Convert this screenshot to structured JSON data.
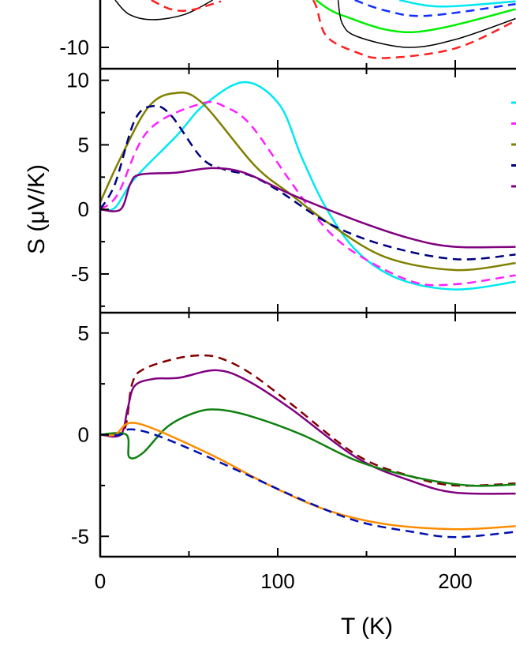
{
  "chart_data": {
    "type": "line",
    "xlabel": "T (K)",
    "ylabel": "S (μV/K)",
    "xlim": [
      0,
      234
    ],
    "xticks": [
      0,
      100,
      200
    ],
    "xtick_labels": [
      "0",
      "100",
      "200"
    ],
    "x_minor_ticks": [
      50,
      150
    ],
    "grid": false,
    "panels": [
      {
        "ylim": [
          -12,
          0
        ],
        "yticks": [
          -10
        ],
        "ytick_labels": [
          "-10"
        ],
        "y_minor_ticks": [],
        "series": [
          {
            "color": "#000000",
            "dash": false,
            "width": 1.5,
            "x": [
              8.4,
              16.3,
              29.6,
              47.7,
              63.4
            ],
            "y": [
              -5.56,
              -6.9,
              -7.4,
              -6.9,
              -5.56
            ]
          },
          {
            "color": "#ff2020",
            "dash": true,
            "width": 2.5,
            "x": [
              28.8,
              39.8,
              50.8,
              68
            ],
            "y": [
              -5.56,
              -6.42,
              -6.5,
              -5.68
            ]
          },
          {
            "color": "#00ee00",
            "dash": false,
            "width": 2.5,
            "x": [
              121.4,
              137,
              176,
              234
            ],
            "y": [
              -5.56,
              -7.04,
              -8.57,
              -6.42
            ]
          },
          {
            "color": "#1030ff",
            "dash": true,
            "width": 2.5,
            "x": [
              143.4,
              160.7,
              184,
              234
            ],
            "y": [
              -5.56,
              -6.55,
              -7.04,
              -5.93
            ]
          },
          {
            "color": "#00e8f0",
            "dash": false,
            "width": 2.5,
            "x": [
              168.5,
              192,
              234
            ],
            "y": [
              -5.56,
              -6.17,
              -5.68
            ]
          },
          {
            "color": "#000000",
            "dash": false,
            "width": 1.5,
            "x": [
              134,
              136.4,
              145,
              173,
              200,
              234
            ],
            "y": [
              -5.56,
              -7.78,
              -9.0,
              -10,
              -9.26,
              -7.3
            ]
          },
          {
            "color": "#ff2020",
            "dash": true,
            "width": 2.5,
            "x": [
              120,
              122,
              127.7,
              145,
              160.7,
              200,
              234
            ],
            "y": [
              -5.56,
              -6.3,
              -9.0,
              -10.5,
              -11.0,
              -10.1,
              -7.5
            ]
          }
        ]
      },
      {
        "ylim": [
          -8,
          10.9
        ],
        "yticks": [
          10,
          5,
          0,
          -5
        ],
        "ytick_labels": [
          "10",
          "5",
          "0",
          "-5"
        ],
        "y_minor_ticks": [
          7.5,
          2.5,
          -2.5,
          -7.5
        ],
        "legend": "right",
        "series": [
          {
            "color": "#00e8f0",
            "dash": false,
            "width": 2.5,
            "x": [
              0,
              8.4,
              19.4,
              43,
              58.6,
              81.4,
              101,
              113.6,
              127.7,
              145,
              168.5,
              200,
              234
            ],
            "y": [
              0,
              0.14,
              2.4,
              5.7,
              8.1,
              9.86,
              8.1,
              4.0,
              0,
              -3.3,
              -5.4,
              -6.2,
              -5.6
            ]
          },
          {
            "color": "#ff20ff",
            "dash": true,
            "width": 2.5,
            "x": [
              0,
              10,
              27,
              57,
              71,
              85,
              107,
              126,
              145,
              176,
              200,
              234
            ],
            "y": [
              0,
              1.2,
              6.1,
              8.2,
              7.9,
              6.5,
              2.2,
              -1.3,
              -3.5,
              -5.6,
              -5.8,
              -5.1
            ]
          },
          {
            "color": "#808000",
            "dash": false,
            "width": 2.5,
            "x": [
              0,
              11.5,
              27,
              41.4,
              57,
              87,
              107,
              129,
              160.7,
              200,
              234
            ],
            "y": [
              0.55,
              4.0,
              7.9,
              9.0,
              8.3,
              3.4,
              1.2,
              -1.1,
              -3.7,
              -4.7,
              -4.15
            ]
          },
          {
            "color": "#000080",
            "dash": true,
            "width": 2.5,
            "x": [
              0,
              8.4,
              19.4,
              29.6,
              39.8,
              57,
              69.6,
              85,
              101,
              129,
              160.7,
              200,
              234
            ],
            "y": [
              0,
              2.0,
              6.9,
              8.0,
              7.3,
              4.0,
              3.1,
              2.6,
              1.4,
              -1.1,
              -2.8,
              -3.85,
              -3.5
            ]
          },
          {
            "color": "#800080",
            "dash": false,
            "width": 2.5,
            "x": [
              0,
              11.5,
              17,
              22.5,
              43,
              63.4,
              82,
              107,
              145,
              176,
              200,
              234
            ],
            "y": [
              0,
              0,
              2.0,
              2.7,
              2.85,
              3.2,
              2.8,
              1.2,
              -0.9,
              -2.3,
              -2.9,
              -2.9
            ]
          }
        ]
      },
      {
        "ylim": [
          -6,
          6
        ],
        "yticks": [
          5,
          0,
          -5
        ],
        "ytick_labels": [
          "5",
          "0",
          "-5"
        ],
        "y_minor_ticks": [
          2.5,
          -2.5
        ],
        "series": [
          {
            "color": "#800000",
            "dash": true,
            "width": 2.5,
            "x": [
              0,
              13,
              17.8,
              24,
              43,
              58.6,
              69.6,
              85,
              107,
              145,
              176,
              200,
              234
            ],
            "y": [
              0,
              0.13,
              2.45,
              3.2,
              3.75,
              3.9,
              3.7,
              3.0,
              1.55,
              -1.03,
              -2.07,
              -2.5,
              -2.4
            ]
          },
          {
            "color": "#800080",
            "dash": false,
            "width": 2.5,
            "x": [
              0,
              11.5,
              15.5,
              19.4,
              30,
              44.5,
              65,
              82,
              107,
              145,
              176,
              200,
              234
            ],
            "y": [
              0,
              0,
              1.3,
              2.4,
              2.74,
              2.8,
              3.17,
              2.7,
              1.3,
              -1.16,
              -2.3,
              -2.85,
              -2.9
            ]
          },
          {
            "color": "#108010",
            "dash": false,
            "width": 2.5,
            "x": [
              0,
              14.7,
              16.3,
              24,
              38,
              54,
              66.5,
              85,
              113.6,
              145,
              176,
              208,
              234
            ],
            "y": [
              0,
              0,
              -1.1,
              -0.9,
              0.4,
              1.1,
              1.23,
              0.9,
              0,
              -1.3,
              -2.07,
              -2.5,
              -2.45
            ]
          },
          {
            "color": "#ff8c00",
            "dash": false,
            "width": 2.5,
            "x": [
              0,
              8.4,
              14.7,
              22.5,
              38,
              66.5,
              98,
              129,
              160.7,
              200,
              234
            ],
            "y": [
              0,
              0,
              0.52,
              0.52,
              0,
              -1.16,
              -2.6,
              -3.75,
              -4.4,
              -4.65,
              -4.5
            ]
          },
          {
            "color": "#0010b0",
            "dash": true,
            "width": 2.5,
            "x": [
              0,
              11.5,
              16.3,
              28.8,
              50.8,
              82,
              113.6,
              145,
              176,
              200,
              234
            ],
            "y": [
              0,
              0,
              0.26,
              0.06,
              -0.71,
              -1.94,
              -3.2,
              -4.26,
              -4.78,
              -5.04,
              -4.78
            ]
          }
        ]
      }
    ]
  }
}
